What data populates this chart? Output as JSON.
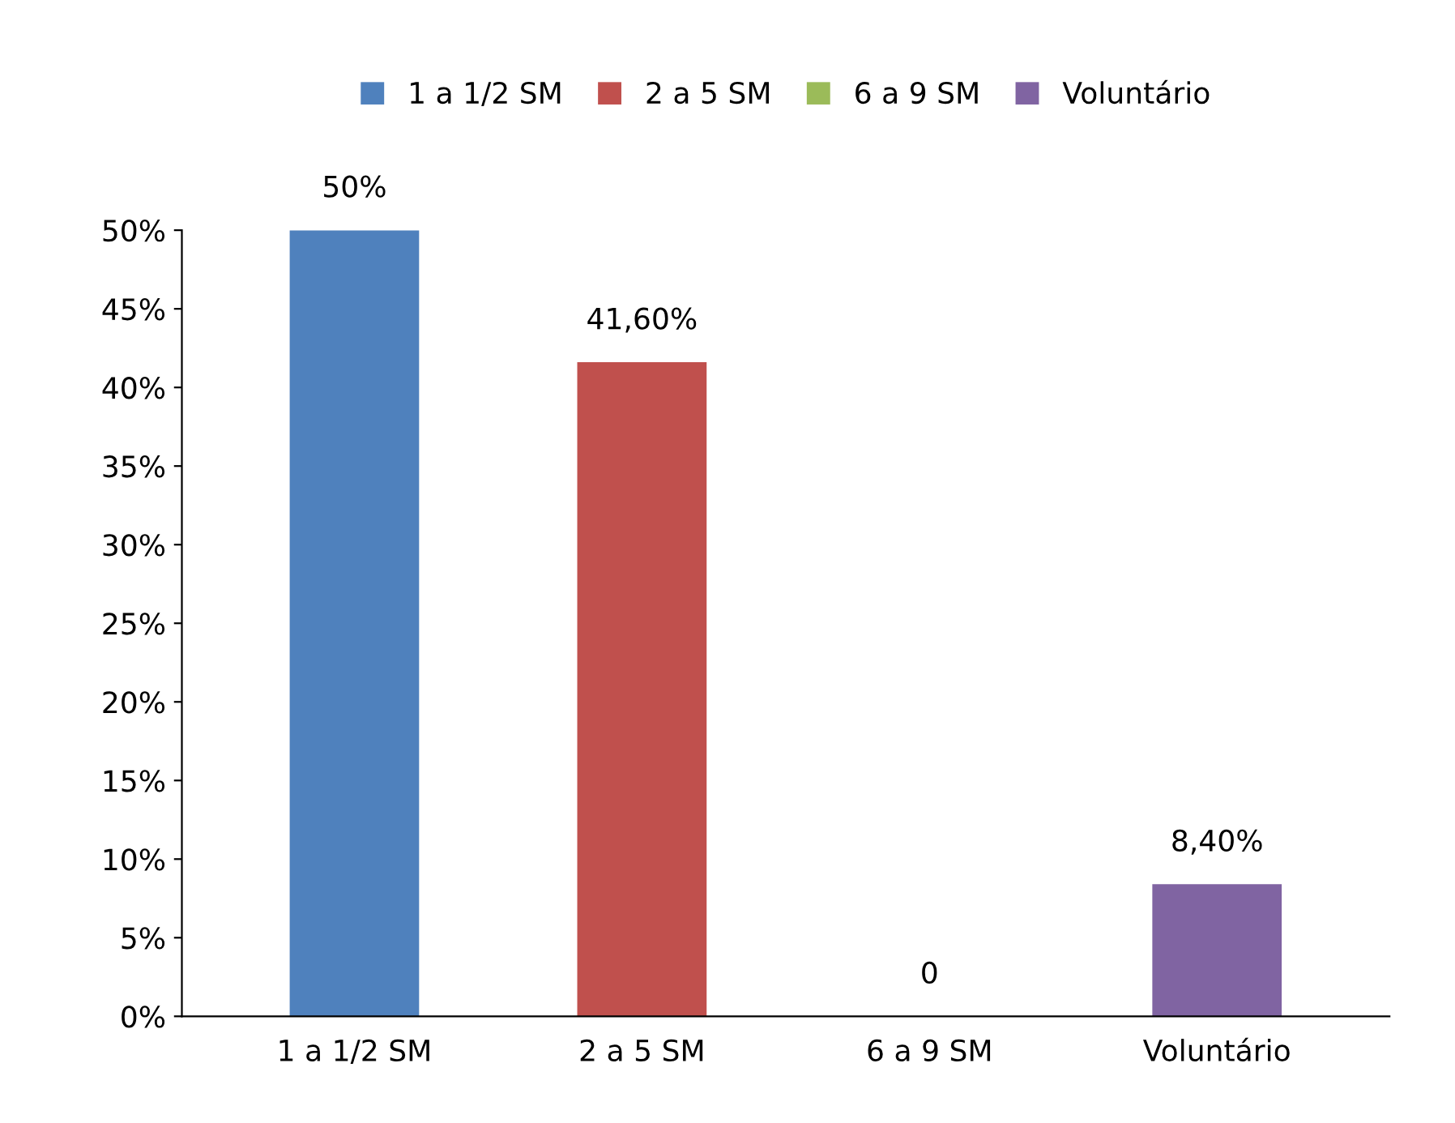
{
  "chart_data": {
    "type": "bar",
    "categories": [
      "1 a 1/2 SM",
      "2 a 5 SM",
      "6 a 9 SM",
      "Voluntário"
    ],
    "series": [
      {
        "name": "1 a 1/2 SM",
        "color": "#4f81bd",
        "values": [
          50,
          null,
          null,
          null
        ],
        "value_labels": [
          "50%",
          null,
          null,
          null
        ]
      },
      {
        "name": "2 a 5 SM",
        "color": "#c0504d",
        "values": [
          null,
          41.6,
          null,
          null
        ],
        "value_labels": [
          null,
          "41,60%",
          null,
          null
        ]
      },
      {
        "name": "6 a 9 SM",
        "color": "#9bbb59",
        "values": [
          null,
          null,
          0,
          null
        ],
        "value_labels": [
          null,
          null,
          "0",
          null
        ]
      },
      {
        "name": "Voluntário",
        "color": "#8064a2",
        "values": [
          null,
          null,
          null,
          8.4
        ],
        "value_labels": [
          null,
          null,
          null,
          "8,40%"
        ]
      }
    ],
    "ylim": [
      0,
      50
    ],
    "yticks": [
      {
        "value": 0,
        "label": "0%"
      },
      {
        "value": 5,
        "label": "5%"
      },
      {
        "value": 10,
        "label": "10%"
      },
      {
        "value": 15,
        "label": "15%"
      },
      {
        "value": 20,
        "label": "20%"
      },
      {
        "value": 25,
        "label": "25%"
      },
      {
        "value": 30,
        "label": "30%"
      },
      {
        "value": 35,
        "label": "35%"
      },
      {
        "value": 40,
        "label": "40%"
      },
      {
        "value": 45,
        "label": "45%"
      },
      {
        "value": 50,
        "label": "50%"
      }
    ],
    "grid": false,
    "legend": "top"
  }
}
